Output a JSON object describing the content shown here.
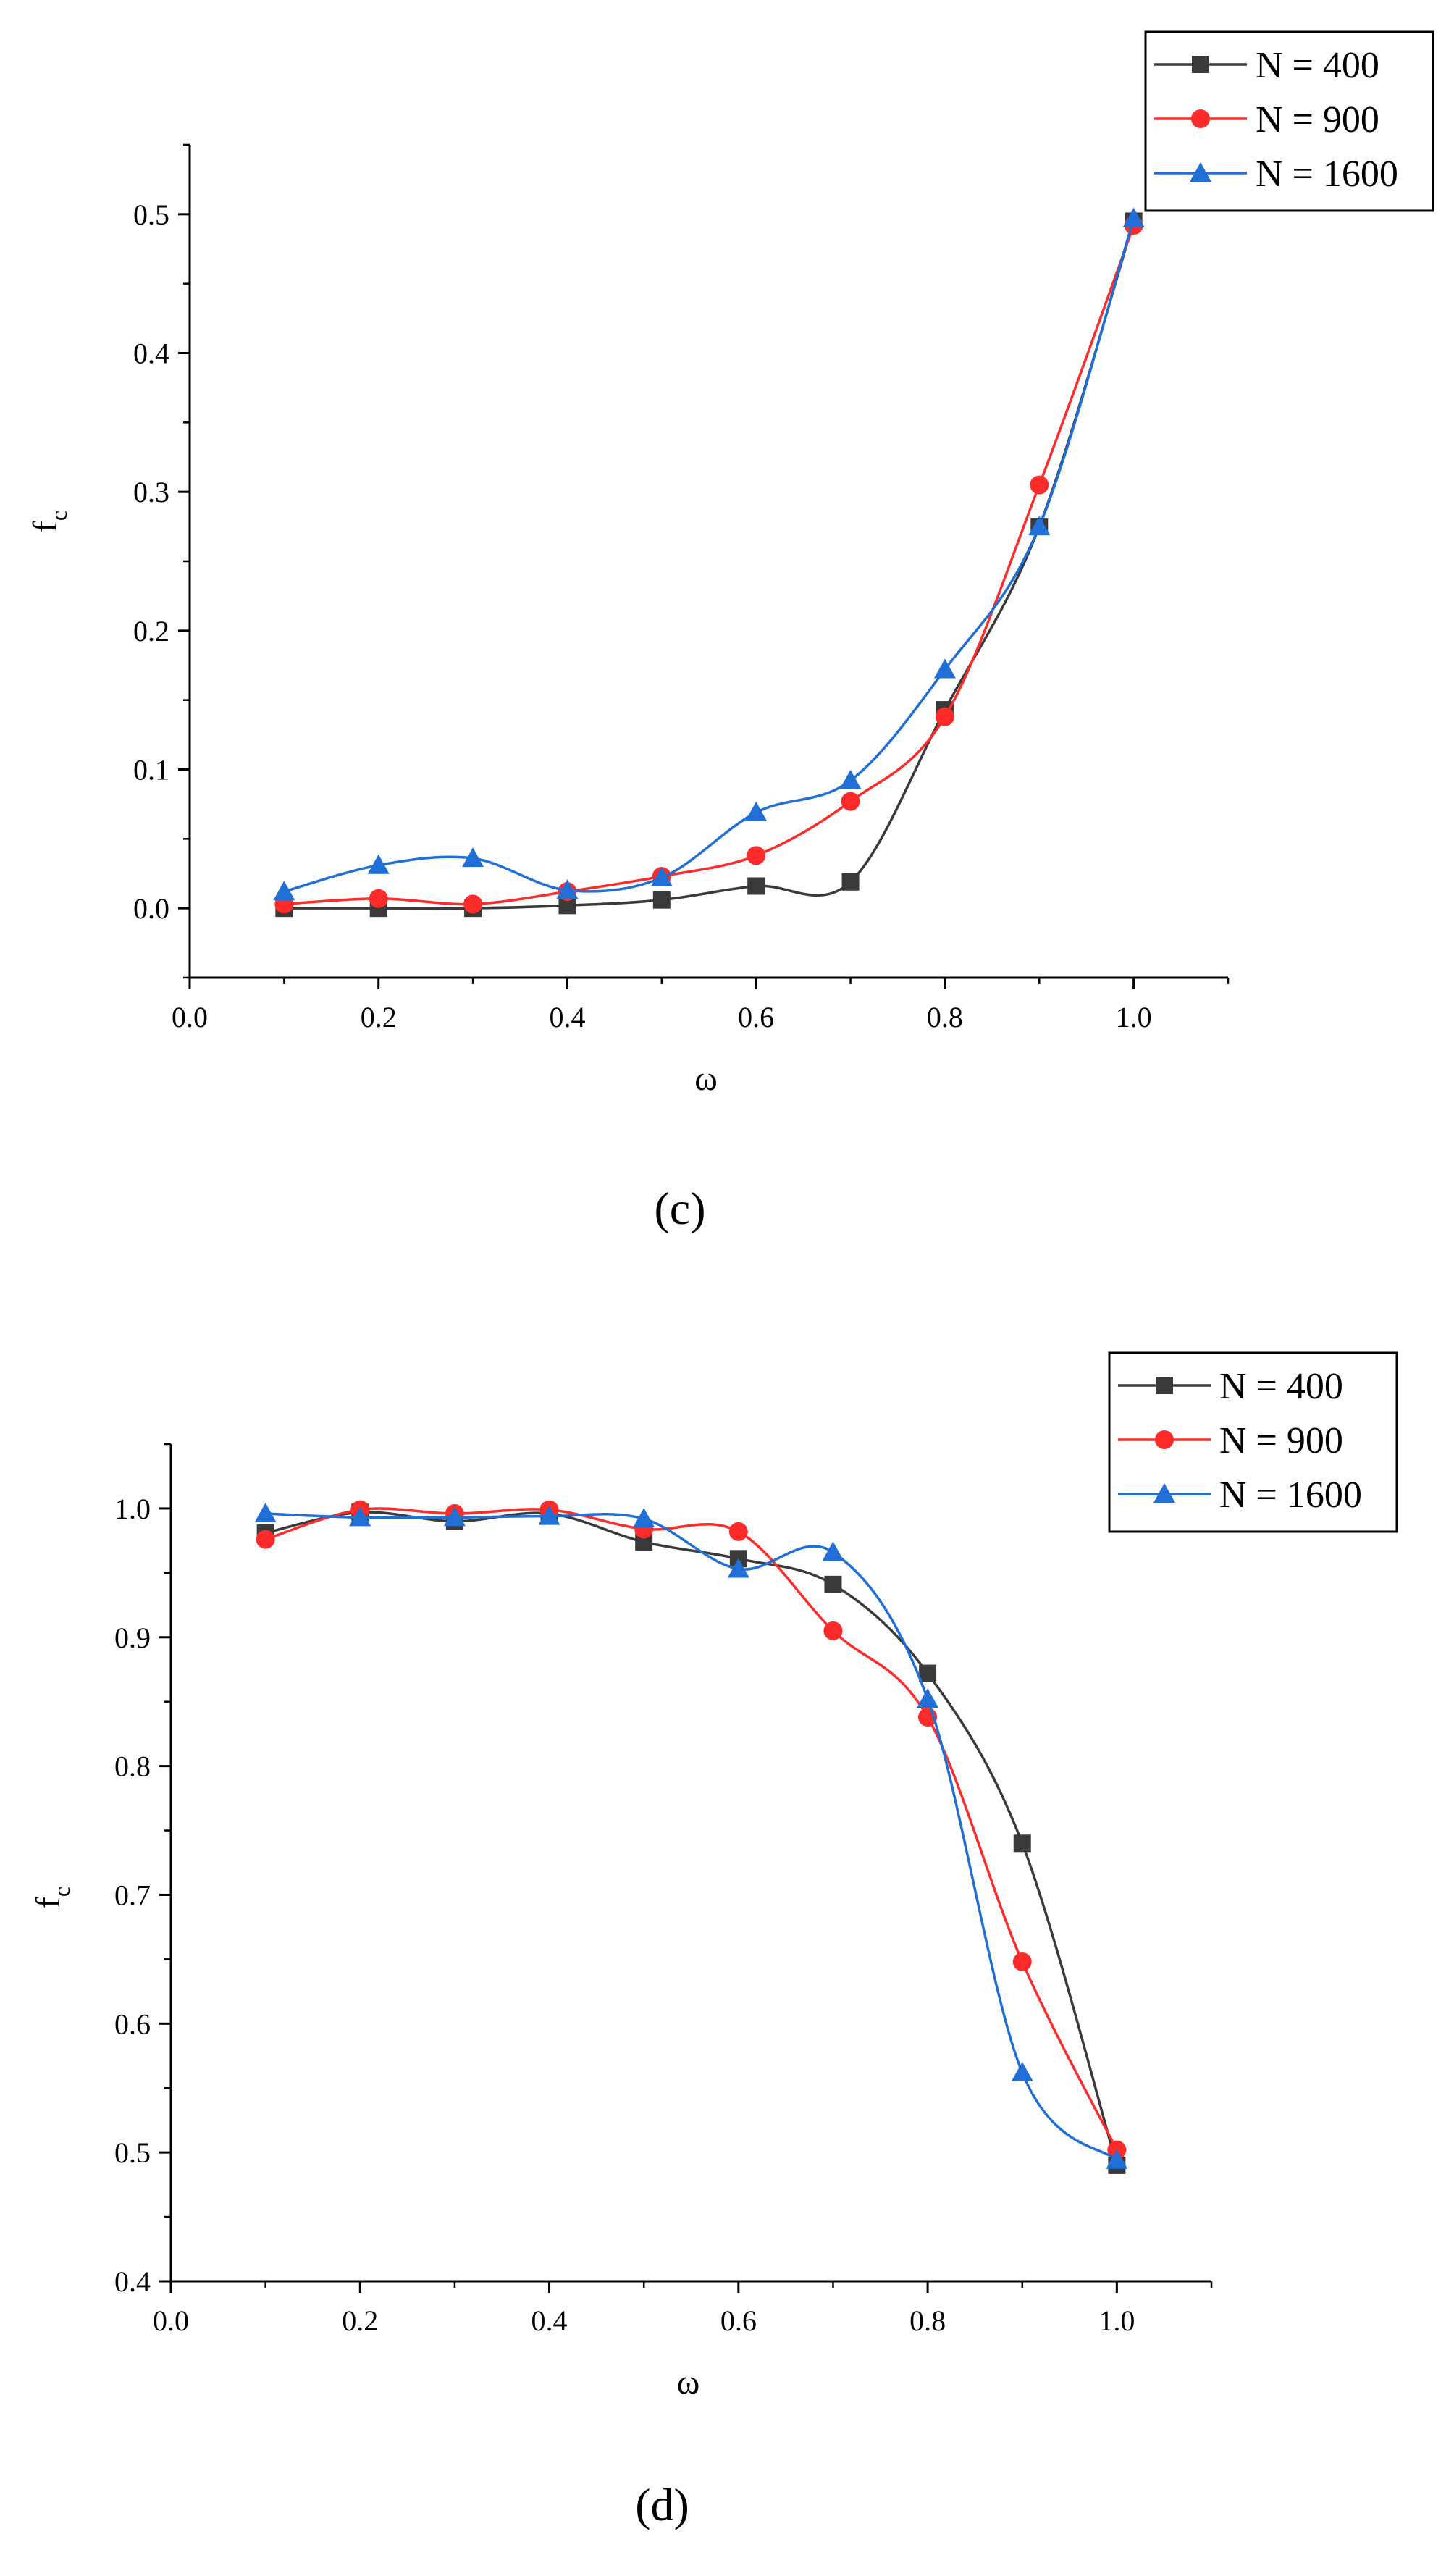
{
  "colors": {
    "N400": "#3a3a3a",
    "N900": "#ff2b2b",
    "N1600": "#1f6fd6",
    "axis": "#000000"
  },
  "chart_data": [
    {
      "type": "line",
      "panel_label": "c",
      "panel_label_text": "(c)",
      "xlabel": "ω",
      "ylabel": "f",
      "ylabel_sub": "c",
      "xlim": [
        0.0,
        1.1
      ],
      "ylim": [
        -0.05,
        0.55
      ],
      "xticks": [
        0.0,
        0.2,
        0.4,
        0.6,
        0.8,
        1.0
      ],
      "xtick_labels": [
        "0.0",
        "0.2",
        "0.4",
        "0.6",
        "0.8",
        "1.0"
      ],
      "yticks": [
        0.0,
        0.1,
        0.2,
        0.3,
        0.4,
        0.5
      ],
      "ytick_labels": [
        "0.0",
        "0.1",
        "0.2",
        "0.3",
        "0.4",
        "0.5"
      ],
      "legend_position": "top-right",
      "x": [
        0.1,
        0.2,
        0.3,
        0.4,
        0.5,
        0.6,
        0.7,
        0.8,
        0.9,
        1.0
      ],
      "series": [
        {
          "name": "N = 400",
          "marker": "square",
          "color_key": "N400",
          "values": [
            0.0,
            0.0,
            0.0,
            0.002,
            0.006,
            0.016,
            0.019,
            0.143,
            0.275,
            0.495
          ]
        },
        {
          "name": "N = 900",
          "marker": "circle",
          "color_key": "N900",
          "values": [
            0.003,
            0.007,
            0.003,
            0.012,
            0.023,
            0.038,
            0.077,
            0.138,
            0.305,
            0.492
          ]
        },
        {
          "name": "N = 1600",
          "marker": "triangle",
          "color_key": "N1600",
          "values": [
            0.012,
            0.031,
            0.036,
            0.013,
            0.022,
            0.069,
            0.092,
            0.172,
            0.275,
            0.497
          ]
        }
      ]
    },
    {
      "type": "line",
      "panel_label": "d",
      "panel_label_text": "(d)",
      "xlabel": "ω",
      "ylabel": "f",
      "ylabel_sub": "c",
      "xlim": [
        0.0,
        1.1
      ],
      "ylim": [
        0.4,
        1.05
      ],
      "xticks": [
        0.0,
        0.2,
        0.4,
        0.6,
        0.8,
        1.0
      ],
      "xtick_labels": [
        "0.0",
        "0.2",
        "0.4",
        "0.6",
        "0.8",
        "1.0"
      ],
      "yticks": [
        0.4,
        0.5,
        0.6,
        0.7,
        0.8,
        0.9,
        1.0
      ],
      "ytick_labels": [
        "0.4",
        "0.5",
        "0.6",
        "0.7",
        "0.8",
        "0.9",
        "1.0"
      ],
      "legend_position": "top-right",
      "x": [
        0.1,
        0.2,
        0.3,
        0.4,
        0.5,
        0.6,
        0.7,
        0.8,
        0.9,
        1.0
      ],
      "series": [
        {
          "name": "N = 400",
          "marker": "square",
          "color_key": "N400",
          "values": [
            0.981,
            0.997,
            0.99,
            0.996,
            0.974,
            0.961,
            0.941,
            0.872,
            0.74,
            0.49
          ]
        },
        {
          "name": "N = 900",
          "marker": "circle",
          "color_key": "N900",
          "values": [
            0.976,
            0.999,
            0.996,
            0.999,
            0.984,
            0.982,
            0.905,
            0.838,
            0.648,
            0.502
          ]
        },
        {
          "name": "N = 1600",
          "marker": "triangle",
          "color_key": "N1600",
          "values": [
            0.996,
            0.993,
            0.993,
            0.994,
            0.992,
            0.953,
            0.966,
            0.852,
            0.562,
            0.494
          ]
        }
      ]
    }
  ]
}
